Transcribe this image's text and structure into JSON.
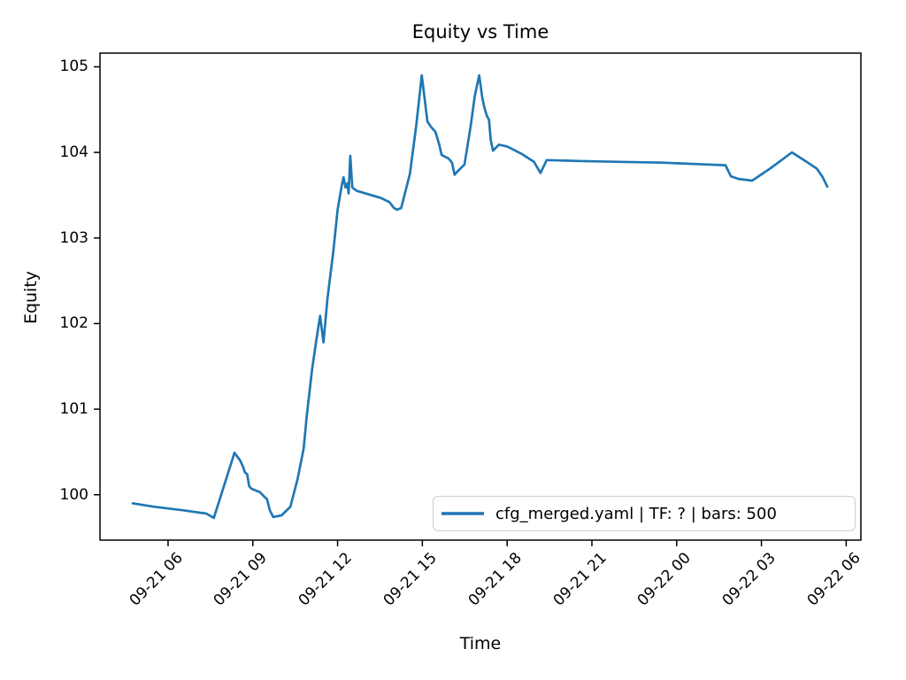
{
  "title": "Equity vs Time",
  "xlabel": "Time",
  "ylabel": "Equity",
  "legend": {
    "label": "cfg_merged.yaml | TF: ? | bars: 500",
    "position": "lower right"
  },
  "colors": {
    "line": "#1f77b4",
    "axis": "#000000",
    "text": "#000000",
    "legend_border": "#cccccc",
    "background": "#ffffff"
  },
  "chart_data": {
    "type": "line",
    "title": "Equity vs Time",
    "xlabel": "Time",
    "ylabel": "Equity",
    "grid": false,
    "legend_position": "lower right",
    "x_unit": "hours since 09-21 00:00",
    "xlim_hours": [
      3.59,
      30.52
    ],
    "ylim": [
      99.47,
      105.16
    ],
    "y_ticks": [
      100,
      101,
      102,
      103,
      104,
      105
    ],
    "x_ticks": [
      {
        "h": 6,
        "label": "09-21 06"
      },
      {
        "h": 9,
        "label": "09-21 09"
      },
      {
        "h": 12,
        "label": "09-21 12"
      },
      {
        "h": 15,
        "label": "09-21 15"
      },
      {
        "h": 18,
        "label": "09-21 18"
      },
      {
        "h": 21,
        "label": "09-21 21"
      },
      {
        "h": 24,
        "label": "09-22 00"
      },
      {
        "h": 27,
        "label": "09-22 03"
      },
      {
        "h": 30,
        "label": "09-22 06"
      }
    ],
    "series": [
      {
        "name": "cfg_merged.yaml | TF: ? | bars: 500",
        "color": "#1f77b4",
        "points": [
          [
            4.75,
            99.9
          ],
          [
            5.5,
            99.86
          ],
          [
            6.5,
            99.82
          ],
          [
            7.35,
            99.78
          ],
          [
            7.62,
            99.73
          ],
          [
            8.35,
            100.49
          ],
          [
            8.55,
            100.4
          ],
          [
            8.65,
            100.33
          ],
          [
            8.72,
            100.26
          ],
          [
            8.8,
            100.24
          ],
          [
            8.87,
            100.1
          ],
          [
            8.95,
            100.07
          ],
          [
            9.25,
            100.03
          ],
          [
            9.4,
            99.98
          ],
          [
            9.5,
            99.95
          ],
          [
            9.6,
            99.82
          ],
          [
            9.72,
            99.74
          ],
          [
            10.02,
            99.76
          ],
          [
            10.33,
            99.86
          ],
          [
            10.59,
            100.19
          ],
          [
            10.8,
            100.54
          ],
          [
            10.91,
            100.93
          ],
          [
            11.1,
            101.47
          ],
          [
            11.25,
            101.81
          ],
          [
            11.38,
            102.09
          ],
          [
            11.5,
            101.78
          ],
          [
            11.64,
            102.29
          ],
          [
            11.85,
            102.85
          ],
          [
            12.0,
            103.33
          ],
          [
            12.14,
            103.6
          ],
          [
            12.21,
            103.71
          ],
          [
            12.28,
            103.59
          ],
          [
            12.35,
            103.64
          ],
          [
            12.39,
            103.52
          ],
          [
            12.45,
            103.96
          ],
          [
            12.52,
            103.59
          ],
          [
            12.68,
            103.55
          ],
          [
            13.52,
            103.47
          ],
          [
            13.83,
            103.42
          ],
          [
            14.0,
            103.35
          ],
          [
            14.1,
            103.33
          ],
          [
            14.25,
            103.35
          ],
          [
            14.56,
            103.75
          ],
          [
            14.78,
            104.3
          ],
          [
            14.98,
            104.9
          ],
          [
            15.18,
            104.36
          ],
          [
            15.3,
            104.3
          ],
          [
            15.46,
            104.24
          ],
          [
            15.6,
            104.09
          ],
          [
            15.68,
            103.97
          ],
          [
            15.92,
            103.93
          ],
          [
            16.05,
            103.88
          ],
          [
            16.14,
            103.74
          ],
          [
            16.25,
            103.78
          ],
          [
            16.49,
            103.86
          ],
          [
            16.7,
            104.29
          ],
          [
            16.86,
            104.67
          ],
          [
            17.01,
            104.9
          ],
          [
            17.12,
            104.64
          ],
          [
            17.2,
            104.52
          ],
          [
            17.28,
            104.43
          ],
          [
            17.36,
            104.38
          ],
          [
            17.42,
            104.14
          ],
          [
            17.5,
            104.02
          ],
          [
            17.71,
            104.09
          ],
          [
            18.0,
            104.07
          ],
          [
            18.53,
            103.98
          ],
          [
            18.95,
            103.89
          ],
          [
            19.18,
            103.76
          ],
          [
            19.4,
            103.91
          ],
          [
            20.5,
            103.9
          ],
          [
            22.0,
            103.89
          ],
          [
            23.5,
            103.88
          ],
          [
            25.0,
            103.86
          ],
          [
            25.73,
            103.85
          ],
          [
            25.92,
            103.72
          ],
          [
            26.2,
            103.69
          ],
          [
            26.67,
            103.67
          ],
          [
            27.3,
            103.81
          ],
          [
            28.08,
            104.0
          ],
          [
            28.55,
            103.9
          ],
          [
            28.96,
            103.81
          ],
          [
            29.17,
            103.71
          ],
          [
            29.33,
            103.6
          ]
        ]
      }
    ]
  }
}
